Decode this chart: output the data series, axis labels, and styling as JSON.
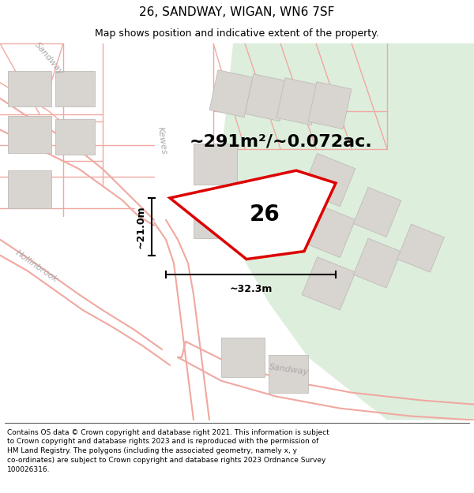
{
  "title": "26, SANDWAY, WIGAN, WN6 7SF",
  "subtitle": "Map shows position and indicative extent of the property.",
  "area_text": "~291m²/~0.072ac.",
  "dim_vertical": "~21.0m",
  "dim_horizontal": "~32.3m",
  "property_label": "26",
  "disclaimer": "Contains OS data © Crown copyright and database right 2021. This information is subject to Crown copyright and database rights 2023 and is reproduced with the permission of HM Land Registry. The polygons (including the associated geometry, namely x, y co-ordinates) are subject to Crown copyright and database rights 2023 Ordnance Survey 100026316.",
  "bg_color": "#f5f3f0",
  "road_color": "#f0a8a0",
  "building_color": "#d8d4cf",
  "building_edge": "#c0bcb7",
  "property_fill": "#ffffff",
  "property_edge": "#dd0000",
  "green_color": "#ddeedd",
  "title_fontsize": 11,
  "subtitle_fontsize": 9,
  "area_fontsize": 16,
  "label_fontsize": 20,
  "disclaimer_fontsize": 6.5,
  "street_fontsize": 8,
  "dim_fontsize": 9
}
